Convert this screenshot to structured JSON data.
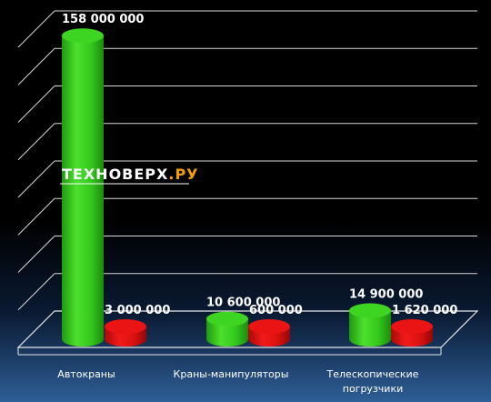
{
  "watermark": {
    "part1": "ТЕХНОВЕРХ",
    "part2": ".РУ"
  },
  "chart_data": {
    "type": "bar",
    "style": "3d-cylinder",
    "categories": [
      "Автокраны",
      "Краны-манипуляторы",
      "Телескопические погрузчики"
    ],
    "category_lines": [
      [
        "Автокраны"
      ],
      [
        "Краны-манипуляторы"
      ],
      [
        "Телескопические",
        "погрузчики"
      ]
    ],
    "series": [
      {
        "values": [
          158000000,
          10600000,
          14900000
        ],
        "labels": [
          "158 000 000",
          "10 600 000",
          "14 900 000"
        ],
        "color": "#33cc1a"
      },
      {
        "values": [
          3000000,
          600000,
          1620000
        ],
        "labels": [
          "3 000 000",
          "600 000",
          "1 620 000"
        ],
        "color": "#e01010"
      }
    ],
    "title": "",
    "xlabel": "",
    "ylabel": "",
    "ylim": [
      0,
      160000000
    ],
    "grid": true,
    "legend": "none"
  }
}
